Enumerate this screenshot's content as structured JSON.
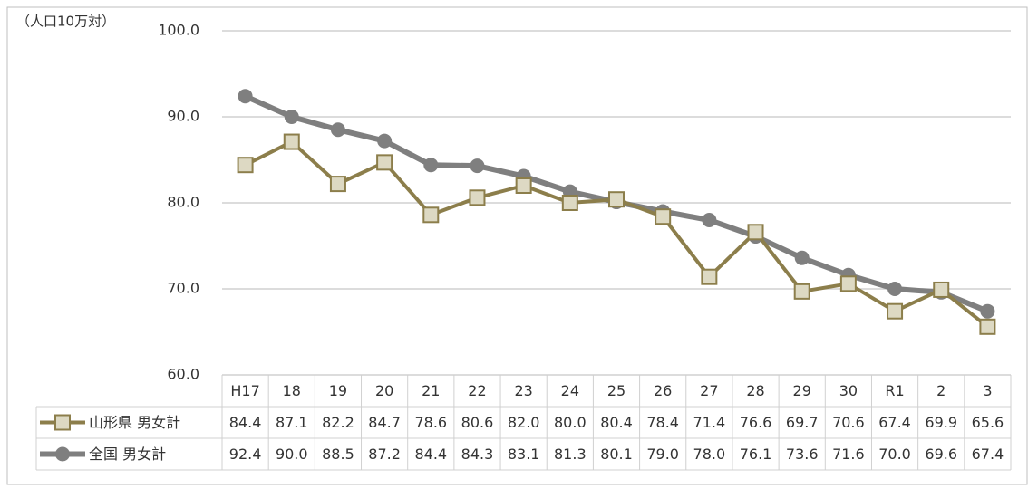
{
  "chart_data": {
    "type": "line",
    "y_axis_label": "（人口10万対）",
    "categories": [
      "H17",
      "18",
      "19",
      "20",
      "21",
      "22",
      "23",
      "24",
      "25",
      "26",
      "27",
      "28",
      "29",
      "30",
      "R1",
      "2",
      "3"
    ],
    "series": [
      {
        "name": "山形県 男女計",
        "color": "#8c7e4b",
        "marker_fill": "#ddd9c3",
        "marker": "square",
        "values": [
          84.4,
          87.1,
          82.2,
          84.7,
          78.6,
          80.6,
          82.0,
          80.0,
          80.4,
          78.4,
          71.4,
          76.6,
          69.7,
          70.6,
          67.4,
          69.9,
          65.6
        ],
        "value_labels": [
          "84.4",
          "87.1",
          "82.2",
          "84.7",
          "78.6",
          "80.6",
          "82.0",
          "80.0",
          "80.4",
          "78.4",
          "71.4",
          "76.6",
          "69.7",
          "70.6",
          "67.4",
          "69.9",
          "65.6"
        ]
      },
      {
        "name": "全国 男女計",
        "color": "#7f7f7f",
        "marker_fill": "#7f7f7f",
        "marker": "circle",
        "values": [
          92.4,
          90.0,
          88.5,
          87.2,
          84.4,
          84.3,
          83.1,
          81.3,
          80.1,
          79.0,
          78.0,
          76.1,
          73.6,
          71.6,
          70.0,
          69.6,
          67.4
        ],
        "value_labels": [
          "92.4",
          "90.0",
          "88.5",
          "87.2",
          "84.4",
          "84.3",
          "83.1",
          "81.3",
          "80.1",
          "79.0",
          "78.0",
          "76.1",
          "73.6",
          "71.6",
          "70.0",
          "69.6",
          "67.4"
        ]
      }
    ],
    "ylim": [
      60,
      100
    ],
    "yticks": [
      {
        "value": 60,
        "label": "60.0"
      },
      {
        "value": 70,
        "label": "70.0"
      },
      {
        "value": 80,
        "label": "80.0"
      },
      {
        "value": 90,
        "label": "90.0"
      },
      {
        "value": 100,
        "label": "100.0"
      }
    ],
    "grid": true
  }
}
